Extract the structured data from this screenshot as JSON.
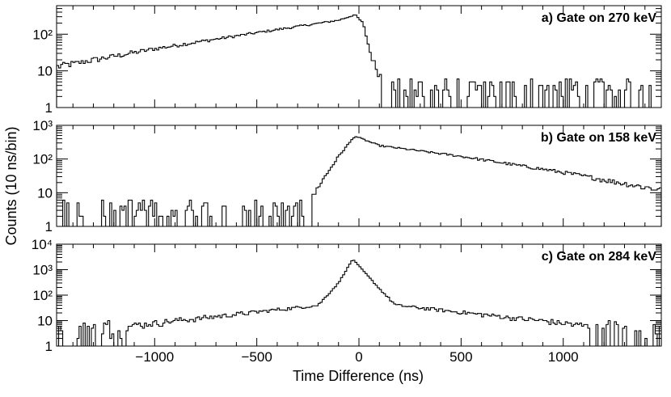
{
  "chart_data": {
    "type": "histogram",
    "xlabel": "Time Difference (ns)",
    "ylabel": "Counts (10 ns/bin)",
    "x_range": [
      -1480,
      1480
    ],
    "bin_width_ns": 10,
    "x_ticks": [
      -1000,
      -500,
      0,
      500,
      1000
    ],
    "x_tick_labels": [
      "−1000",
      "−500",
      "0",
      "500",
      "1000"
    ],
    "y_scale": "log",
    "panels": [
      {
        "label": "a) Gate on 270 keV",
        "ylim": [
          1,
          600
        ],
        "y_ticks": [
          1,
          10,
          100
        ],
        "y_tick_labels": [
          "1",
          "10",
          "10²"
        ],
        "shape": "slow_rise_then_sharp_drop",
        "series": {
          "anchor_x": [
            -1480,
            -1000,
            -500,
            -100,
            -20,
            20,
            60,
            100,
            140,
            1480
          ],
          "anchor_y": [
            13,
            40,
            110,
            240,
            340,
            200,
            25,
            8,
            3,
            3
          ]
        }
      },
      {
        "label": "b) Gate on 158 keV",
        "ylim": [
          1,
          1000
        ],
        "y_ticks": [
          1,
          10,
          100,
          1000
        ],
        "y_tick_labels": [
          "1",
          "10",
          "10²",
          "10³"
        ],
        "shape": "sharp_rise_then_slow_decay",
        "series": {
          "anchor_x": [
            -1480,
            -260,
            -200,
            -100,
            -20,
            100,
            500,
            1000,
            1480
          ],
          "anchor_y": [
            3,
            3,
            15,
            120,
            480,
            250,
            120,
            40,
            12
          ]
        }
      },
      {
        "label": "c) Gate on 284 keV",
        "ylim": [
          1,
          10000
        ],
        "y_ticks": [
          1,
          10,
          100,
          1000,
          10000
        ],
        "y_tick_labels": [
          "1",
          "10",
          "10²",
          "10³",
          "10⁴"
        ],
        "shape": "prompt_peak",
        "series": {
          "anchor_x": [
            -1480,
            -200,
            -100,
            -30,
            100,
            180,
            1480
          ],
          "anchor_y": [
            3,
            40,
            300,
            2600,
            180,
            40,
            3
          ]
        }
      }
    ]
  }
}
